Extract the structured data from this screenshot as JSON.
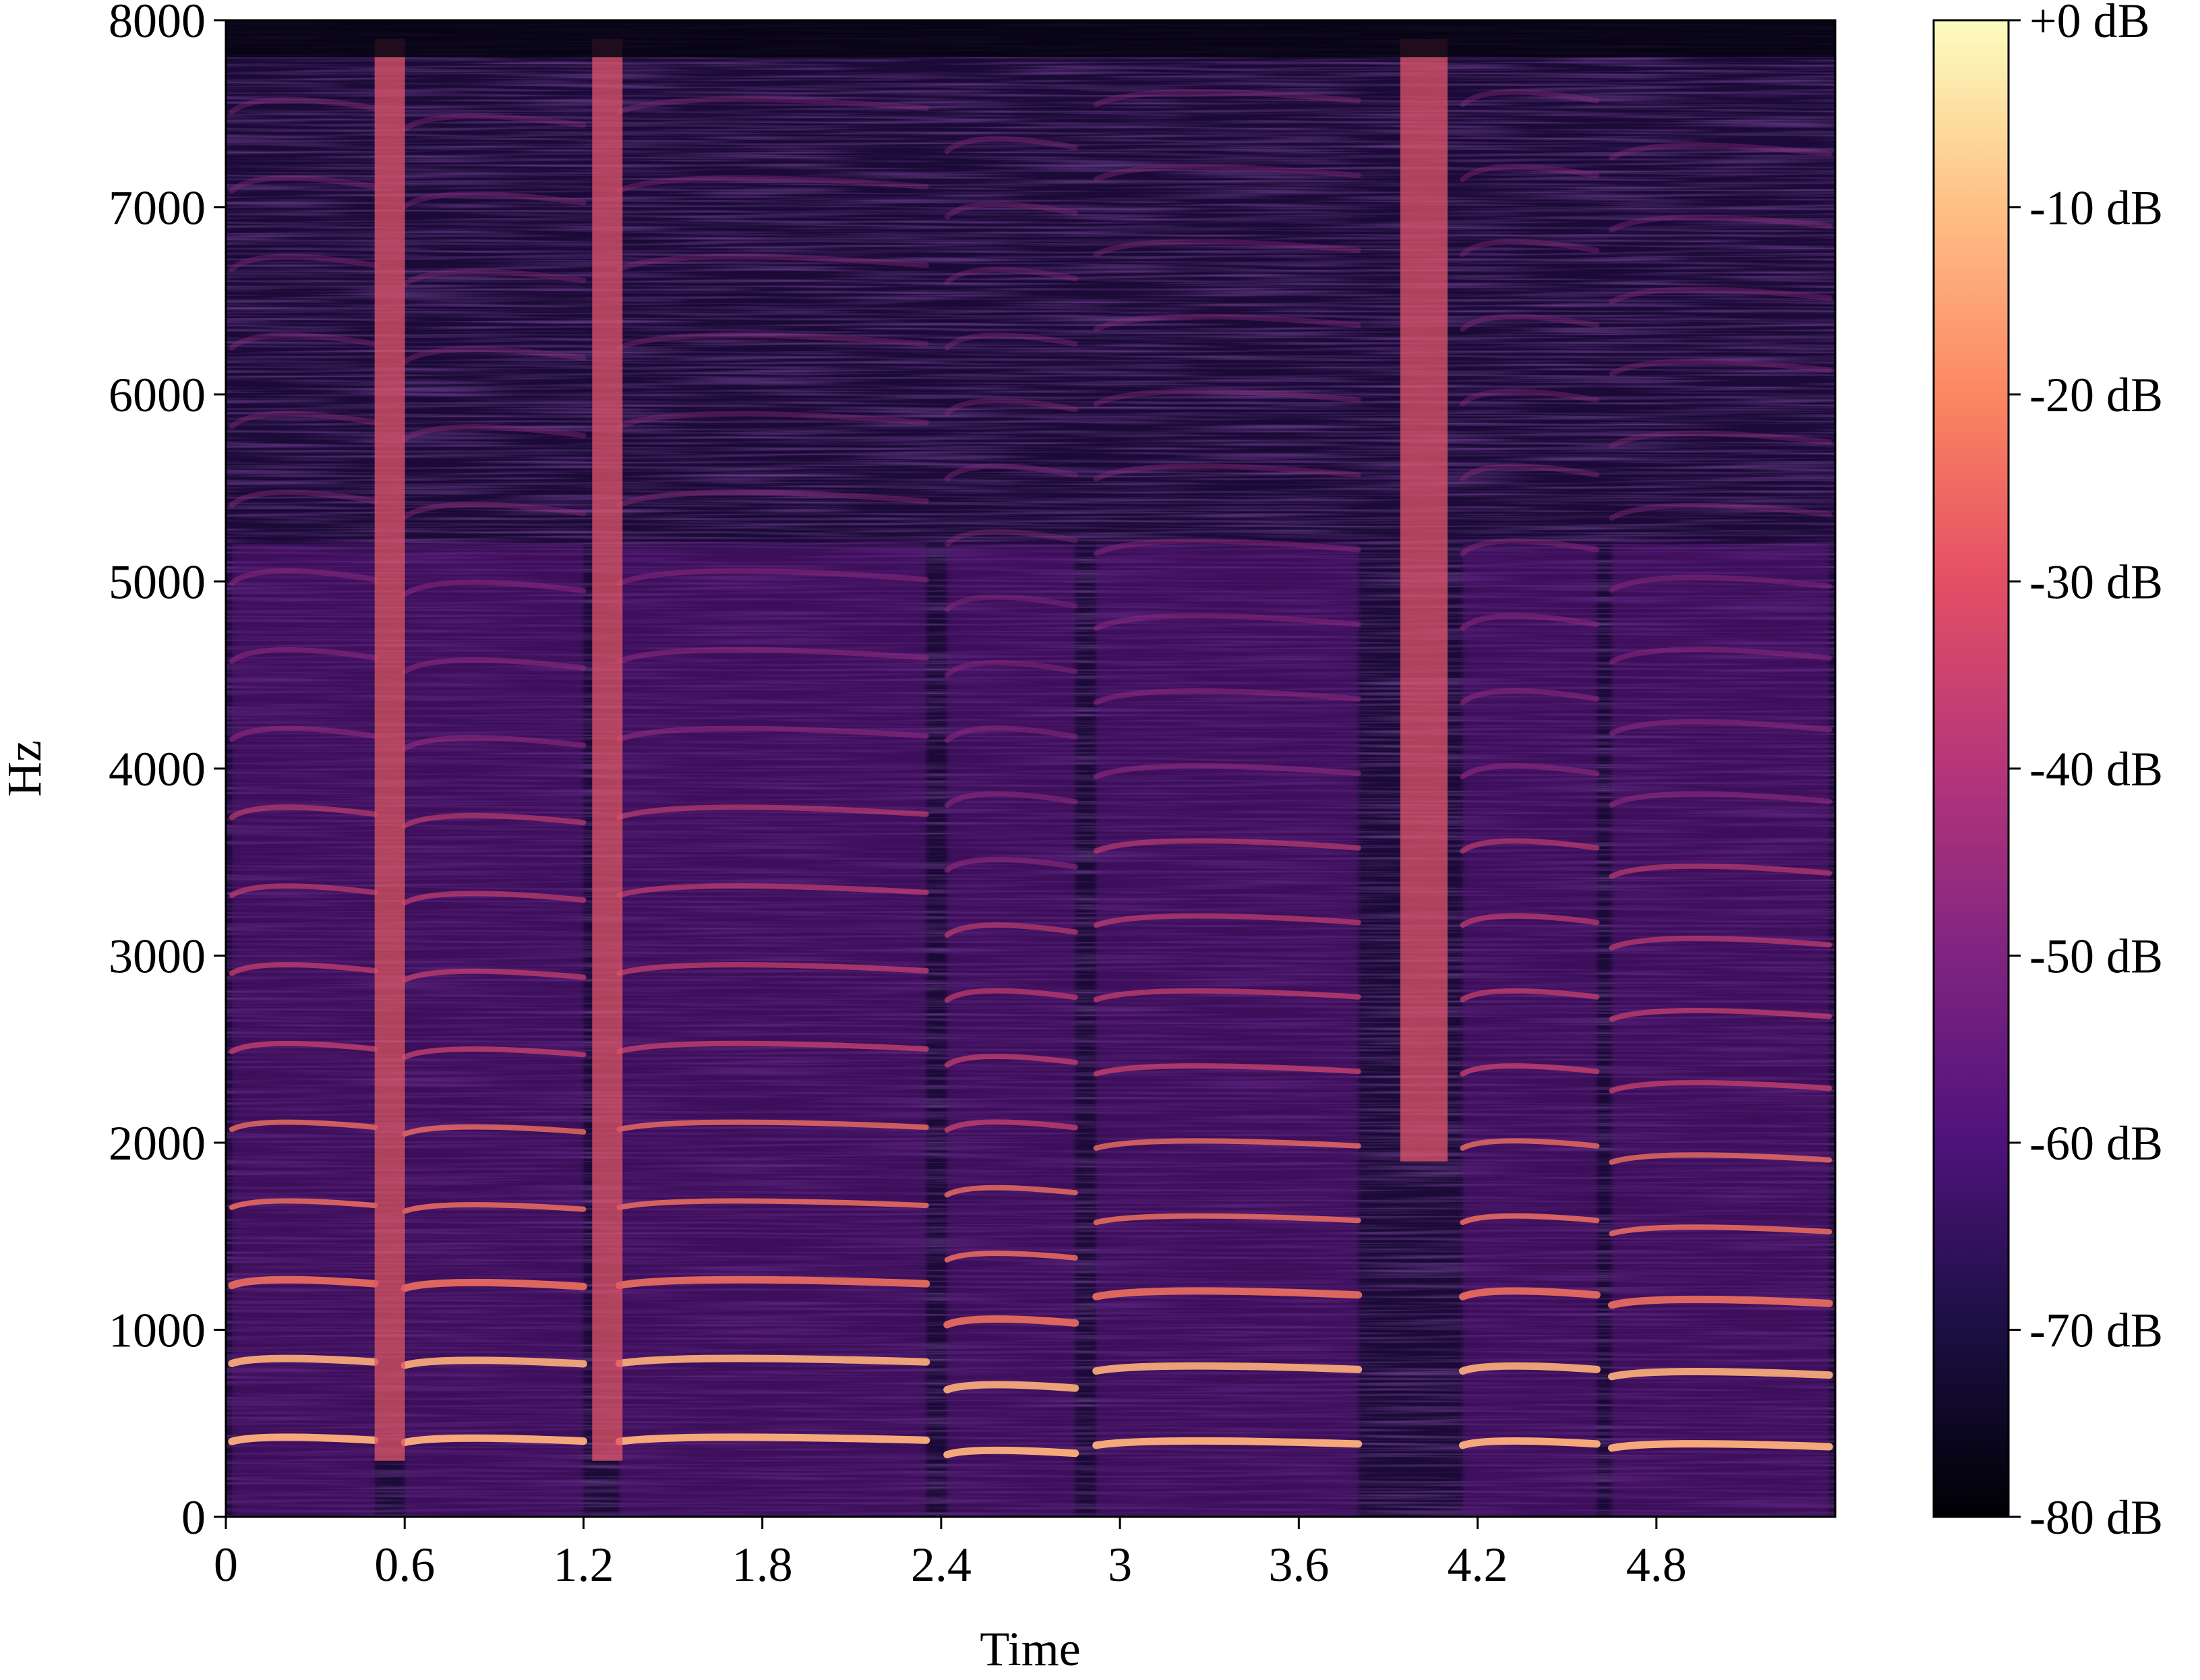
{
  "chart_data": {
    "type": "heatmap",
    "subtype": "spectrogram",
    "colormap": "magma",
    "xlabel": "Time",
    "ylabel": "Hz",
    "xlim": [
      0,
      5.4
    ],
    "ylim": [
      0,
      8000
    ],
    "x_ticks": [
      {
        "value": 0,
        "label": "0"
      },
      {
        "value": 0.6,
        "label": "0.6"
      },
      {
        "value": 1.2,
        "label": "1.2"
      },
      {
        "value": 1.8,
        "label": "1.8"
      },
      {
        "value": 2.4,
        "label": "2.4"
      },
      {
        "value": 3.0,
        "label": "3"
      },
      {
        "value": 3.6,
        "label": "3.6"
      },
      {
        "value": 4.2,
        "label": "4.2"
      },
      {
        "value": 4.8,
        "label": "4.8"
      }
    ],
    "y_ticks": [
      {
        "value": 0,
        "label": "0"
      },
      {
        "value": 1000,
        "label": "1000"
      },
      {
        "value": 2000,
        "label": "2000"
      },
      {
        "value": 3000,
        "label": "3000"
      },
      {
        "value": 4000,
        "label": "4000"
      },
      {
        "value": 5000,
        "label": "5000"
      },
      {
        "value": 6000,
        "label": "6000"
      },
      {
        "value": 7000,
        "label": "7000"
      },
      {
        "value": 8000,
        "label": "8000"
      }
    ],
    "colorbar": {
      "range": [
        -80,
        0
      ],
      "unit": "dB",
      "ticks": [
        {
          "value": 0,
          "label": "+0 dB"
        },
        {
          "value": -10,
          "label": "-10 dB"
        },
        {
          "value": -20,
          "label": "-20 dB"
        },
        {
          "value": -30,
          "label": "-30 dB"
        },
        {
          "value": -40,
          "label": "-40 dB"
        },
        {
          "value": -50,
          "label": "-50 dB"
        },
        {
          "value": -60,
          "label": "-60 dB"
        },
        {
          "value": -70,
          "label": "-70 dB"
        },
        {
          "value": -80,
          "label": "-80 dB"
        }
      ]
    },
    "segments": [
      {
        "t_start": 0.02,
        "t_end": 0.5,
        "f0": 420
      },
      {
        "t_start": 0.6,
        "t_end": 1.2,
        "f0": 415
      },
      {
        "t_start": 1.32,
        "t_end": 2.35,
        "f0": 420
      },
      {
        "t_start": 2.42,
        "t_end": 2.85,
        "f0": 350
      },
      {
        "t_start": 2.92,
        "t_end": 3.8,
        "f0": 400
      },
      {
        "t_start": 4.15,
        "t_end": 4.6,
        "f0": 400
      },
      {
        "t_start": 4.65,
        "t_end": 5.38,
        "f0": 385
      }
    ],
    "broadband_bursts": [
      0.55,
      1.28,
      4.02
    ],
    "grid": false
  }
}
